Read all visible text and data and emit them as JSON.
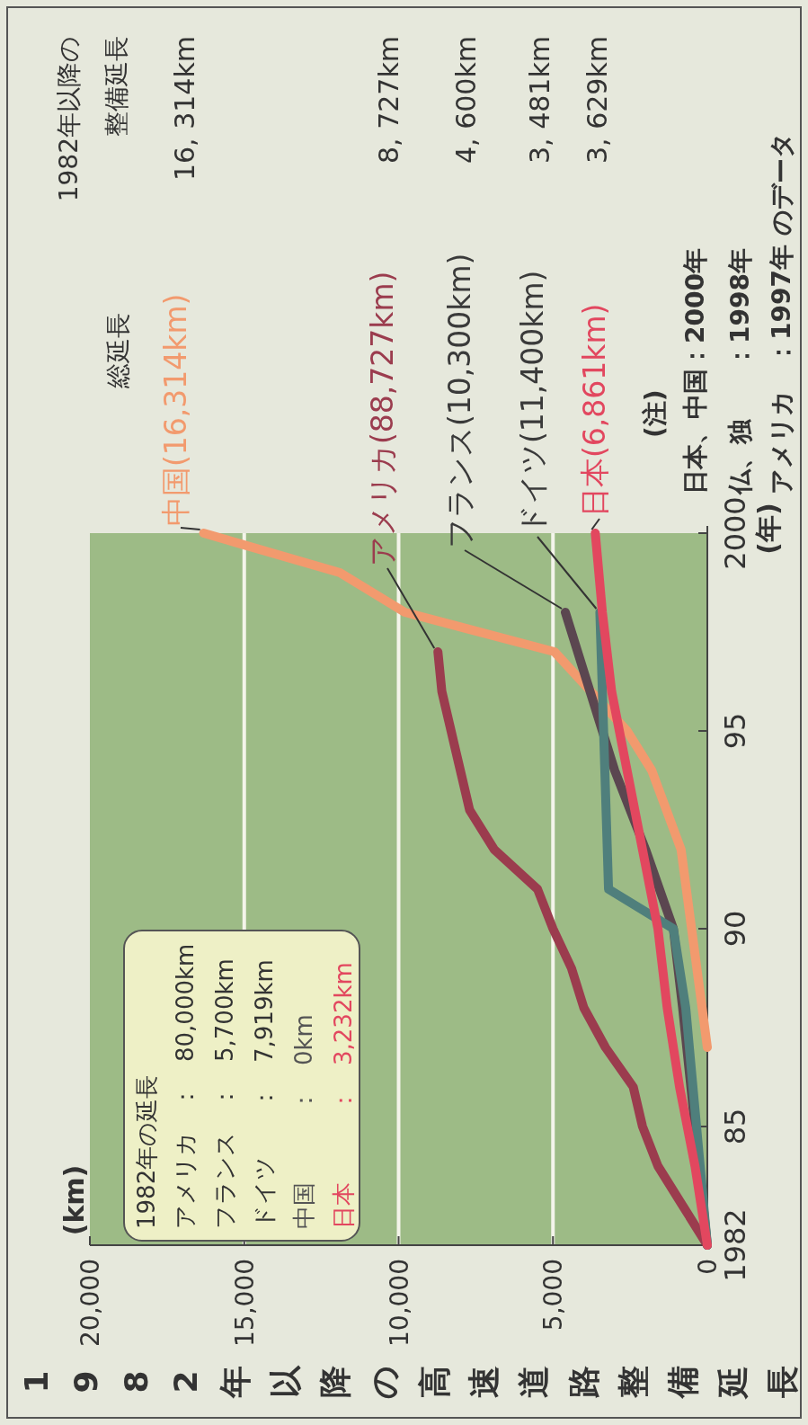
{
  "chart_data": {
    "type": "line",
    "xlabel": "1982年以降の高速道路整備延長",
    "ylabel": "(年)",
    "ylim": [
      1982,
      2000
    ],
    "yticks": [
      {
        "value": 1982,
        "label": "1982"
      },
      {
        "value": 1985,
        "label": "85"
      },
      {
        "value": 1990,
        "label": "90"
      },
      {
        "value": 1995,
        "label": "95"
      },
      {
        "value": 2000,
        "label": "2000"
      }
    ],
    "xlim": [
      20000,
      0
    ],
    "xticks": [
      {
        "value": 0,
        "label": "0"
      },
      {
        "value": 5000,
        "label": "5,000"
      },
      {
        "value": 10000,
        "label": "10,000"
      },
      {
        "value": 15000,
        "label": "15,000"
      },
      {
        "value": 20000,
        "label": "20,000"
      }
    ],
    "grid": "x",
    "series": [
      {
        "name": "中国(16,314km)",
        "color": "#f29a6e",
        "values": [
          1987,
          1992,
          1994,
          1995,
          1997,
          1998,
          1999,
          2000
        ],
        "x": [
          0,
          850,
          1800,
          2600,
          4950,
          9800,
          11900,
          16314
        ]
      },
      {
        "name": "アメリカ(88,727km)",
        "color": "#9b3c4e",
        "values": [
          1982,
          1983,
          1984,
          1985,
          1986,
          1987,
          1988,
          1989,
          1990,
          1991,
          1992,
          1993,
          1994,
          1995,
          1996,
          1997
        ],
        "x": [
          0,
          800,
          1600,
          2100,
          2400,
          3300,
          4000,
          4400,
          5000,
          5500,
          6900,
          7700,
          8000,
          8300,
          8600,
          8727
        ]
      },
      {
        "name": "フランス(10,300km)",
        "color": "#5b4650",
        "values": [
          1982,
          1985,
          1988,
          1990,
          1992,
          1994,
          1996,
          1998
        ],
        "x": [
          0,
          400,
          800,
          1100,
          2000,
          3000,
          3800,
          4600
        ]
      },
      {
        "name": "ドイツ(11,400km)",
        "color": "#4f7f7c",
        "values": [
          1982,
          1985,
          1988,
          1990,
          1991,
          1996,
          1998
        ],
        "x": [
          0,
          350,
          700,
          1100,
          3200,
          3400,
          3481
        ]
      },
      {
        "name": "日本(6,861km)",
        "color": "#e2475f",
        "values": [
          1982,
          1984,
          1986,
          1988,
          1990,
          1992,
          1994,
          1996,
          1998,
          2000
        ],
        "x": [
          0,
          400,
          900,
          1300,
          1600,
          2100,
          2600,
          3100,
          3400,
          3629
        ]
      }
    ],
    "annotations": [
      "(km)",
      "総延長",
      "1982年以降の整備延長",
      "16, 314km",
      "8, 727km",
      "4, 600km",
      "3, 481km",
      "3, 629km",
      "1982年の延長",
      "アメリカ　：　80,000km",
      "フランス　：　5,700km",
      "ドイツ　　：　7,919km",
      "中国　　　：　0km",
      "日本　　　：　3,232km",
      "(注)",
      "日本、中国：2000年",
      "仏、独　　：1998年",
      "アメリカ　：1997年 のデータ"
    ]
  }
}
